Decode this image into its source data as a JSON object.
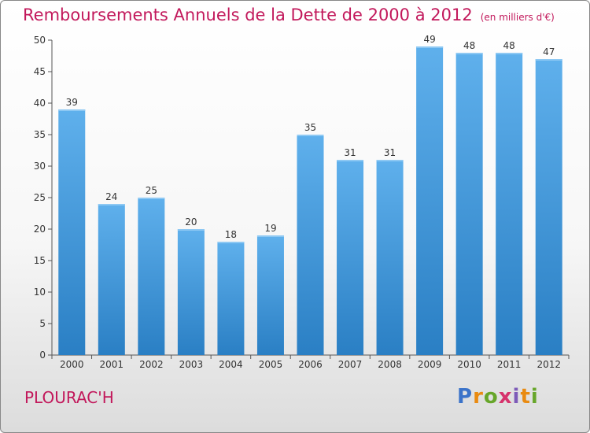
{
  "chart_data": {
    "type": "bar",
    "title": "Remboursements Annuels de la Dette de 2000 à 2012",
    "subtitle": "(en milliers d'€)",
    "categories": [
      "2000",
      "2001",
      "2002",
      "2003",
      "2004",
      "2005",
      "2006",
      "2007",
      "2008",
      "2009",
      "2010",
      "2011",
      "2012"
    ],
    "values": [
      39,
      24,
      25,
      20,
      18,
      19,
      35,
      31,
      31,
      49,
      48,
      48,
      47
    ],
    "ylim": [
      0,
      50
    ],
    "yticks": [
      0,
      5,
      10,
      15,
      20,
      25,
      30,
      35,
      40,
      45,
      50
    ],
    "grid": false,
    "bar_color": "#3a93d8",
    "data_labels": true
  },
  "footer": {
    "place": "PLOURAC'H",
    "logo": "Proxiti"
  },
  "colors": {
    "title": "#c2185b",
    "bar_top": "#5fb0ec",
    "bar_bottom": "#2a7fc4"
  }
}
